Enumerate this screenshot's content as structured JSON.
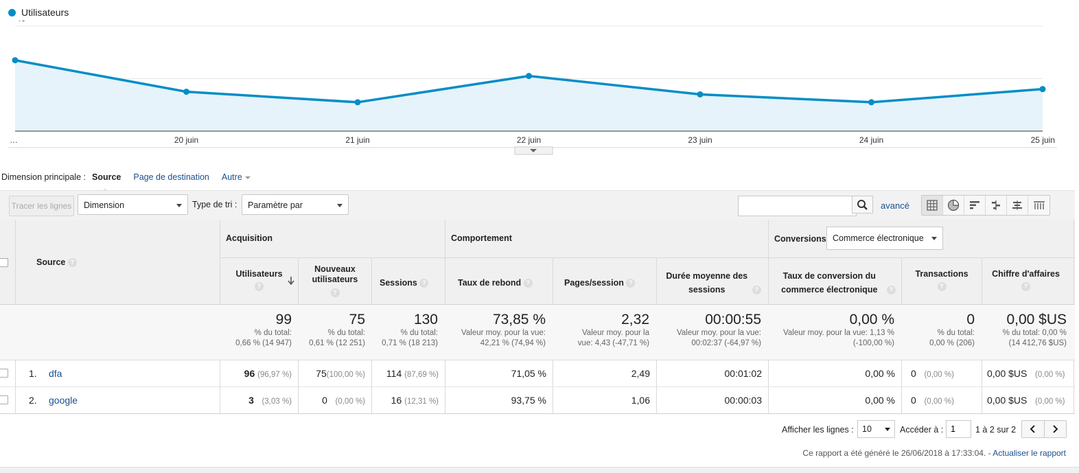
{
  "chart": {
    "legend": "Utilisateurs",
    "color": "#058dc7",
    "fill": "#e6f3fa"
  },
  "chart_data": {
    "type": "area",
    "x": [
      "…",
      "20 juin",
      "21 juin",
      "22 juin",
      "23 juin",
      "24 juin",
      "25 juin"
    ],
    "series": [
      {
        "name": "Utilisateurs",
        "values": [
          27,
          15,
          11,
          21,
          14,
          11,
          16
        ]
      }
    ],
    "yticks": [
      40,
      20
    ],
    "ylim": [
      0,
      40
    ],
    "grid": true,
    "legend_position": "top-left"
  },
  "dimension": {
    "label": "Dimension principale :",
    "active": "Source",
    "links": [
      "Page de destination"
    ],
    "other": "Autre"
  },
  "toolbar": {
    "plot_rows": "Tracer les lignes",
    "secondary": "Dimension secondaire",
    "sort_label": "Type de tri :",
    "sort_value": "Paramètre par défaut",
    "search_placeholder": "",
    "advanced": "avancé"
  },
  "table": {
    "source_header": "Source",
    "groups": {
      "acquisition": "Acquisition",
      "behavior": "Comportement",
      "conversions": "Conversions",
      "conversions_select": "Commerce électronique"
    },
    "columns": {
      "users": "Utilisateurs",
      "new_users": "Nouveaux utilisateurs",
      "sessions": "Sessions",
      "bounce": "Taux de rebond",
      "pages": "Pages/session",
      "duration": "Durée moyenne des sessions",
      "conv_rate": "Taux de conversion du commerce électronique",
      "transactions": "Transactions",
      "revenue": "Chiffre d'affaires"
    },
    "totals": {
      "users": {
        "value": "99",
        "sub1": "% du total:",
        "sub2": "0,66 % (14 947)"
      },
      "new_users": {
        "value": "75",
        "sub1": "% du total:",
        "sub2": "0,61 % (12 251)"
      },
      "sessions": {
        "value": "130",
        "sub1": "% du total:",
        "sub2": "0,71 % (18 213)"
      },
      "bounce": {
        "value": "73,85 %",
        "sub1": "Valeur moy. pour la vue:",
        "sub2": "42,21 % (74,94 %)"
      },
      "pages": {
        "value": "2,32",
        "sub1": "Valeur moy. pour la",
        "sub2": "vue: 4,43 (-47,71 %)"
      },
      "duration": {
        "value": "00:00:55",
        "sub1": "Valeur moy. pour la vue:",
        "sub2": "00:02:37 (-64,97 %)"
      },
      "conv_rate": {
        "value": "0,00 %",
        "sub1": "Valeur moy. pour la vue: 1,13 %",
        "sub2": "(-100,00 %)"
      },
      "transactions": {
        "value": "0",
        "sub1": "% du total:",
        "sub2": "0,00 % (206)"
      },
      "revenue": {
        "value": "0,00 $US",
        "sub1": "% du total: 0,00 %",
        "sub2": "(14 412,76 $US)"
      }
    },
    "rows": [
      {
        "index": "1.",
        "source": "dfa",
        "users": "96",
        "users_pct": "(96,97 %)",
        "new_users": "75",
        "new_users_pct": "(100,00 %)",
        "sessions": "114",
        "sessions_pct": "(87,69 %)",
        "bounce": "71,05 %",
        "pages": "2,49",
        "duration": "00:01:02",
        "conv_rate": "0,00 %",
        "transactions": "0",
        "transactions_pct": "(0,00 %)",
        "revenue": "0,00 $US",
        "revenue_pct": "(0,00 %)"
      },
      {
        "index": "2.",
        "source": "google",
        "users": "3",
        "users_pct": "(3,03 %)",
        "new_users": "0",
        "new_users_pct": "(0,00 %)",
        "sessions": "16",
        "sessions_pct": "(12,31 %)",
        "bounce": "93,75 %",
        "pages": "1,06",
        "duration": "00:00:03",
        "conv_rate": "0,00 %",
        "transactions": "0",
        "transactions_pct": "(0,00 %)",
        "revenue": "0,00 $US",
        "revenue_pct": "(0,00 %)"
      }
    ]
  },
  "pager": {
    "show_rows_label": "Afficher les lignes :",
    "show_rows_value": "10",
    "goto_label": "Accéder à :",
    "goto_value": "1",
    "range": "1 à 2 sur 2"
  },
  "report": {
    "generated": "Ce rapport a été généré le 26/06/2018 à 17:33:04. -",
    "refresh": "Actualiser le rapport"
  }
}
